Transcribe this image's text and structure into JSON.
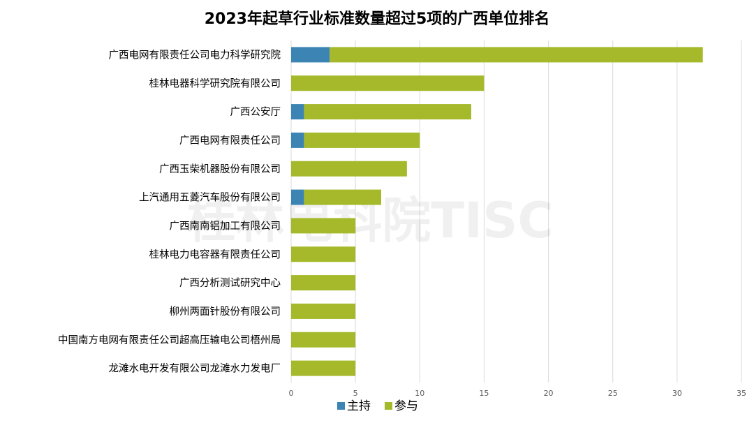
{
  "chart_data": {
    "type": "bar",
    "orientation": "horizontal",
    "stacked": true,
    "title": "2023年起草行业标准数量超过5项的广西单位排名",
    "categories": [
      "广西电网有限责任公司电力科学研究院",
      "桂林电器科学研究院有限公司",
      "广西公安厅",
      "广西电网有限责任公司",
      "广西玉柴机器股份有限公司",
      "上汽通用五菱汽车股份有限公司",
      "广西南南铝加工有限公司",
      "桂林电力电容器有限责任公司",
      "广西分析测试研究中心",
      "柳州两面针股份有限公司",
      "中国南方电网有限责任公司超高压输电公司梧州局",
      "龙滩水电开发有限公司龙滩水力发电厂"
    ],
    "series": [
      {
        "name": "主持",
        "color": "#3b84b3",
        "values": [
          3,
          0,
          1,
          1,
          0,
          1,
          0,
          0,
          0,
          0,
          0,
          0
        ]
      },
      {
        "name": "参与",
        "color": "#a5b92a",
        "values": [
          29,
          15,
          13,
          9,
          9,
          6,
          5,
          5,
          5,
          5,
          5,
          5
        ]
      }
    ],
    "xlim": [
      0,
      35
    ],
    "xticks": [
      "0",
      "5",
      "10",
      "15",
      "20",
      "25",
      "30",
      "35"
    ],
    "grid": true,
    "legend_position": "bottom",
    "watermark": "桂林电科院TISC"
  }
}
